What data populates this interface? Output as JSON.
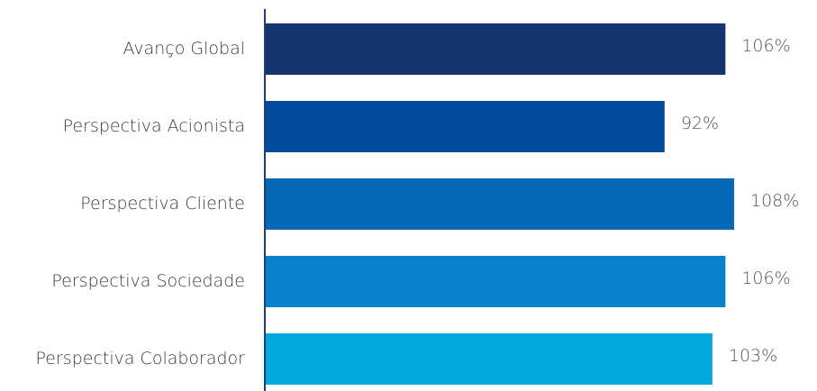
{
  "chart_data": {
    "type": "bar",
    "orientation": "horizontal",
    "categories": [
      "Avanço Global",
      "Perspectiva Acionista",
      "Perspectiva Cliente",
      "Perspectiva Sociedade",
      "Perspectiva Colaborador"
    ],
    "values": [
      106,
      92,
      108,
      106,
      103
    ],
    "value_labels": [
      "106%",
      "92%",
      "108%",
      "106%",
      "103%"
    ],
    "unit": "%",
    "bar_colors": [
      "#16356f",
      "#024a9a",
      "#0468b6",
      "#0a7fcb",
      "#00a8db"
    ],
    "axis_color": "#1c3f79",
    "xlim": [
      0,
      108
    ],
    "grid": false,
    "legend": "none",
    "title": "",
    "xlabel": "",
    "ylabel": ""
  }
}
